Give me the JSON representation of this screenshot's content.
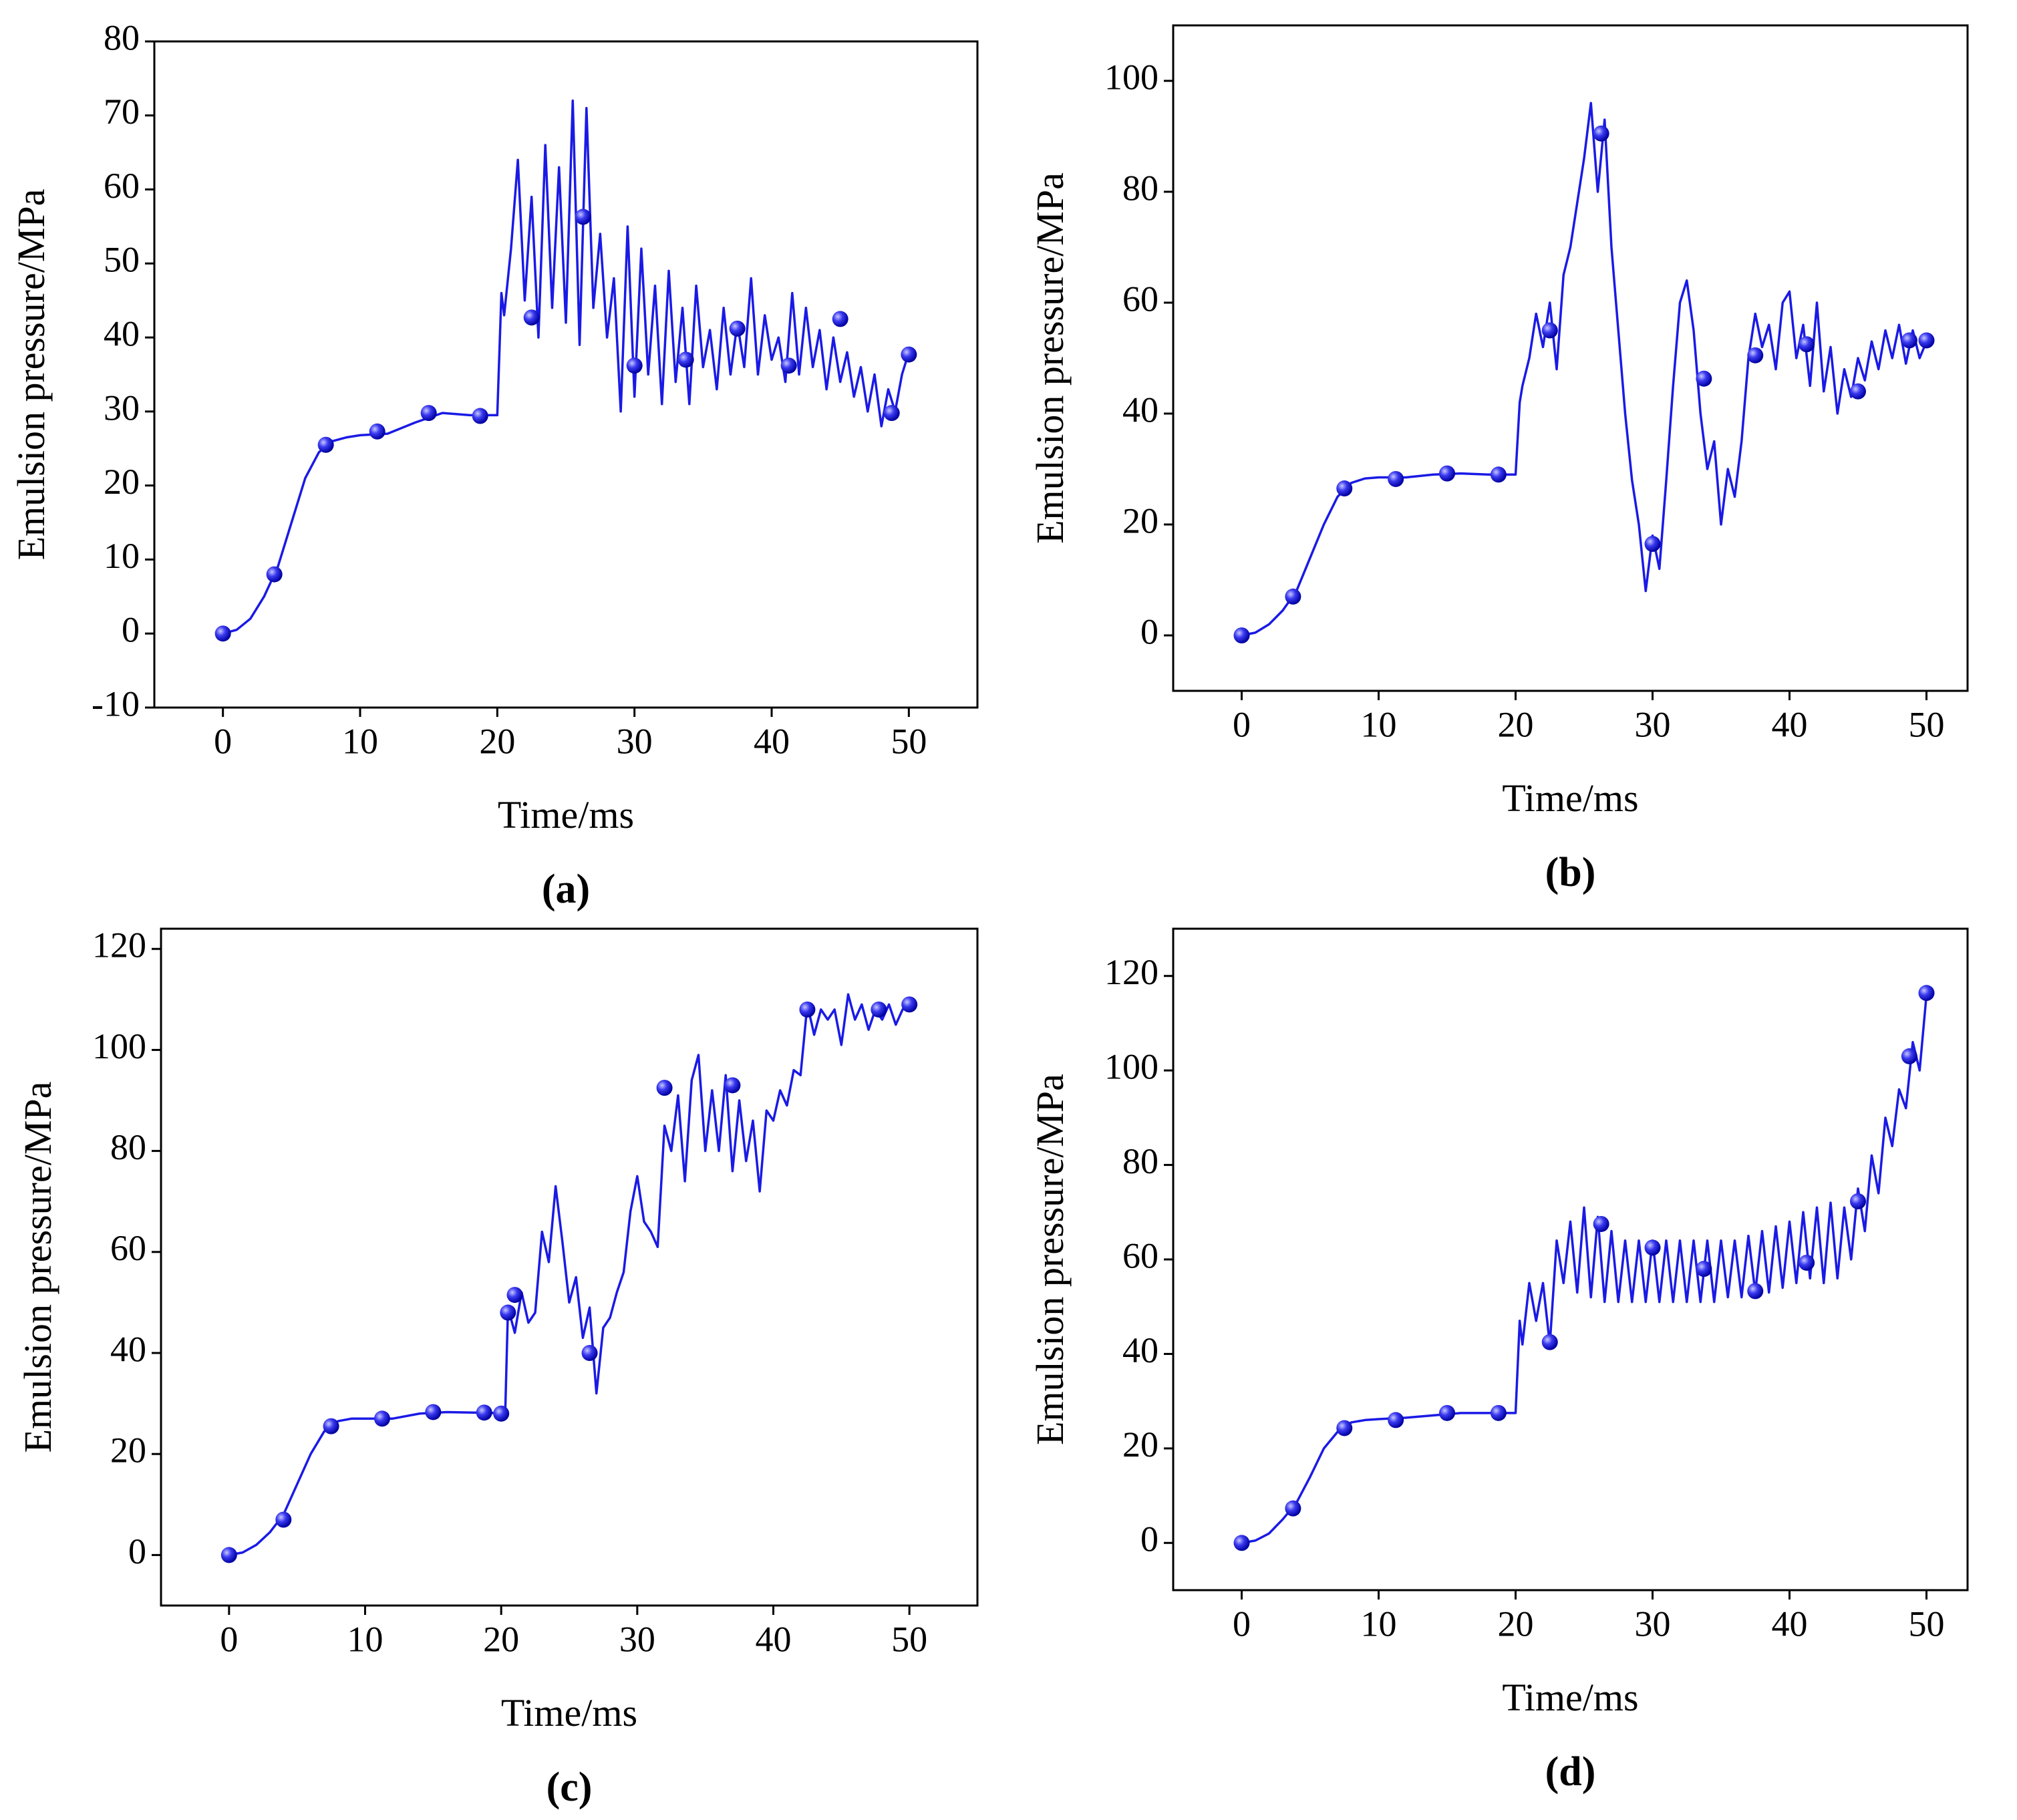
{
  "chart_data": [
    {
      "type": "line",
      "label": "(a)",
      "x_label": "Time/ms",
      "y_label": "Emulsion pressure/MPa",
      "color": "#1a1ae6",
      "xlim": [
        -5,
        55
      ],
      "ylim": [
        -10,
        80
      ],
      "xticks": [
        0,
        10,
        20,
        30,
        40,
        50
      ],
      "yticks": [
        -10,
        0,
        10,
        20,
        30,
        40,
        50,
        60,
        70,
        80
      ],
      "x": [
        0,
        1,
        2,
        3,
        4,
        5,
        6,
        7,
        8,
        9,
        10,
        12,
        14,
        16,
        18,
        19,
        20,
        20.3,
        20.5,
        21,
        21.5,
        22,
        22.5,
        23,
        23.5,
        24,
        24.5,
        25,
        25.5,
        26,
        26.5,
        27,
        27.5,
        28,
        28.5,
        29,
        29.5,
        30,
        30.5,
        31,
        31.5,
        32,
        32.5,
        33,
        33.5,
        34,
        34.5,
        35,
        35.5,
        36,
        36.5,
        37,
        37.5,
        38,
        38.5,
        39,
        39.5,
        40,
        40.5,
        41,
        41.5,
        42,
        42.5,
        43,
        43.5,
        44,
        44.5,
        45,
        45.5,
        46,
        46.5,
        47,
        47.5,
        48,
        48.5,
        49,
        49.5,
        50
      ],
      "values": [
        0,
        0.5,
        2,
        5,
        9,
        15,
        21,
        24.5,
        26,
        26.5,
        26.8,
        27,
        28.5,
        29.8,
        29.5,
        29.5,
        29.5,
        46,
        43,
        52,
        64,
        45,
        59,
        40,
        66,
        44,
        63,
        42,
        72,
        39,
        71,
        44,
        54,
        40,
        48,
        30,
        55,
        32,
        52,
        35,
        47,
        31,
        49,
        34,
        44,
        31,
        47,
        36,
        41,
        33,
        44,
        35,
        42,
        36,
        48,
        35,
        43,
        37,
        40,
        34,
        46,
        35,
        44,
        36,
        41,
        33,
        40,
        34,
        38,
        32,
        36,
        30,
        35,
        28,
        33,
        30,
        35,
        38
      ],
      "markers": {
        "x": [
          0,
          3.75,
          7.5,
          11.25,
          15,
          18.75,
          22.5,
          26.25,
          30,
          33.75,
          37.5,
          41.25,
          45,
          48.75,
          50
        ],
        "values": [
          0,
          8,
          25.5,
          27.3,
          29.8,
          29.4,
          42.7,
          56.3,
          36.2,
          37,
          41.2,
          36.2,
          42.5,
          29.8,
          37.7
        ]
      }
    },
    {
      "type": "line",
      "label": "(b)",
      "x_label": "Time/ms",
      "y_label": "Emulsion pressure/MPa",
      "color": "#1a1ae6",
      "xlim": [
        -5,
        53
      ],
      "ylim": [
        -10,
        110
      ],
      "xticks": [
        0,
        10,
        20,
        30,
        40,
        50
      ],
      "yticks": [
        0,
        20,
        40,
        60,
        80,
        100
      ],
      "x": [
        0,
        1,
        2,
        3,
        4,
        5,
        6,
        7,
        8,
        9,
        10,
        12,
        14,
        16,
        18,
        19,
        20,
        20.3,
        20.5,
        21,
        21.5,
        22,
        22.5,
        23,
        23.5,
        24,
        24.5,
        25,
        25.5,
        26,
        26.5,
        27,
        27.5,
        28,
        28.5,
        29,
        29.5,
        30,
        30.5,
        31,
        31.5,
        32,
        32.5,
        33,
        33.5,
        34,
        34.5,
        35,
        35.5,
        36,
        36.5,
        37,
        37.5,
        38,
        38.5,
        39,
        39.5,
        40,
        40.5,
        41,
        41.5,
        42,
        42.5,
        43,
        43.5,
        44,
        44.5,
        45,
        45.5,
        46,
        46.5,
        47,
        47.5,
        48,
        48.5,
        49,
        49.5,
        50
      ],
      "values": [
        0,
        0.5,
        2,
        4.5,
        8,
        14,
        20,
        25,
        27.5,
        28.3,
        28.5,
        28.5,
        29,
        29.2,
        29,
        29,
        29,
        42,
        45,
        50,
        58,
        52,
        60,
        48,
        65,
        70,
        78,
        86,
        96,
        80,
        93,
        70,
        55,
        40,
        28,
        20,
        8,
        18,
        12,
        28,
        45,
        60,
        64,
        55,
        40,
        30,
        35,
        20,
        30,
        25,
        35,
        50,
        58,
        52,
        56,
        48,
        60,
        62,
        50,
        56,
        45,
        60,
        44,
        52,
        40,
        48,
        43,
        50,
        46,
        53,
        48,
        55,
        50,
        56,
        49,
        55,
        50,
        53
      ],
      "markers": {
        "x": [
          0,
          3.75,
          7.5,
          11.25,
          15,
          18.75,
          22.5,
          26.25,
          30,
          33.75,
          37.5,
          41.25,
          45,
          48.75,
          50
        ],
        "values": [
          0,
          7,
          26.5,
          28.2,
          29.2,
          29,
          55,
          90.5,
          16.5,
          46.3,
          50.5,
          52.5,
          44,
          53.2,
          53.2
        ]
      }
    },
    {
      "type": "line",
      "label": "(c)",
      "x_label": "Time/ms",
      "y_label": "Emulsion pressure/MPa",
      "color": "#1a1ae6",
      "xlim": [
        -5,
        55
      ],
      "ylim": [
        -10,
        124
      ],
      "xticks": [
        0,
        10,
        20,
        30,
        40,
        50
      ],
      "yticks": [
        0,
        20,
        40,
        60,
        80,
        100,
        120
      ],
      "x": [
        0,
        1,
        2,
        3,
        4,
        5,
        6,
        7,
        8,
        9,
        10,
        12,
        14,
        16,
        18,
        19,
        20,
        20.3,
        20.5,
        21,
        21.5,
        22,
        22.5,
        23,
        23.5,
        24,
        24.5,
        25,
        25.5,
        26,
        26.5,
        27,
        27.5,
        28,
        28.5,
        29,
        29.5,
        30,
        30.5,
        31,
        31.5,
        32,
        32.5,
        33,
        33.5,
        34,
        34.5,
        35,
        35.5,
        36,
        36.5,
        37,
        37.5,
        38,
        38.5,
        39,
        39.5,
        40,
        40.5,
        41,
        41.5,
        42,
        42.5,
        43,
        43.5,
        44,
        44.5,
        45,
        45.5,
        46,
        46.5,
        47,
        47.5,
        48,
        48.5,
        49,
        49.5,
        50
      ],
      "values": [
        0,
        0.5,
        2,
        4.5,
        8,
        14,
        20,
        24.5,
        26.5,
        27,
        27,
        27,
        28,
        28.3,
        28.2,
        28.2,
        28,
        28.5,
        49,
        44,
        52,
        46,
        48,
        64,
        58,
        73,
        62,
        50,
        55,
        43,
        49,
        32,
        45,
        47,
        52,
        56,
        68,
        75,
        66,
        64,
        61,
        85,
        80,
        91,
        74,
        94,
        99,
        80,
        92,
        80,
        95,
        76,
        90,
        78,
        86,
        72,
        88,
        86,
        92,
        89,
        96,
        95,
        109,
        103,
        108,
        106,
        108,
        101,
        111,
        106,
        109,
        104,
        108,
        106,
        109,
        105,
        108,
        109
      ],
      "markers": {
        "x": [
          0,
          4,
          7.5,
          11.25,
          15,
          18.75,
          20,
          20.5,
          21,
          26.5,
          32,
          37,
          42.5,
          47.75,
          50
        ],
        "values": [
          0,
          7,
          25.5,
          27,
          28.3,
          28.2,
          28,
          48,
          51.5,
          40,
          92.5,
          93,
          108,
          108,
          109
        ]
      }
    },
    {
      "type": "line",
      "label": "(d)",
      "x_label": "Time/ms",
      "y_label": "Emulsion pressure/MPa",
      "color": "#1a1ae6",
      "xlim": [
        -5,
        53
      ],
      "ylim": [
        -10,
        130
      ],
      "xticks": [
        0,
        10,
        20,
        30,
        40,
        50
      ],
      "yticks": [
        0,
        20,
        40,
        60,
        80,
        100,
        120
      ],
      "x": [
        0,
        1,
        2,
        3,
        4,
        5,
        6,
        7,
        8,
        9,
        10,
        12,
        14,
        16,
        18,
        19,
        20,
        20.3,
        20.5,
        21,
        21.5,
        22,
        22.5,
        23,
        23.5,
        24,
        24.5,
        25,
        25.5,
        26,
        26.5,
        27,
        27.5,
        28,
        28.5,
        29,
        29.5,
        30,
        30.5,
        31,
        31.5,
        32,
        32.5,
        33,
        33.5,
        34,
        34.5,
        35,
        35.5,
        36,
        36.5,
        37,
        37.5,
        38,
        38.5,
        39,
        39.5,
        40,
        40.5,
        41,
        41.5,
        42,
        42.5,
        43,
        43.5,
        44,
        44.5,
        45,
        45.5,
        46,
        46.5,
        47,
        47.5,
        48,
        48.5,
        49,
        49.5,
        50
      ],
      "values": [
        0,
        0.5,
        2,
        5,
        8.5,
        14,
        20,
        23.5,
        25.5,
        26,
        26.2,
        26.5,
        27,
        27.5,
        27.5,
        27.5,
        27.5,
        47,
        42,
        55,
        47,
        55,
        42,
        64,
        55,
        68,
        53,
        71,
        52,
        69,
        51,
        66,
        51,
        64,
        51,
        64,
        51,
        64,
        51,
        64,
        51,
        64,
        51,
        64,
        51,
        64,
        51,
        64,
        52,
        64,
        52,
        65,
        53,
        66,
        53,
        67,
        54,
        68,
        55,
        70,
        56,
        71,
        55,
        72,
        56,
        71,
        60,
        75,
        66,
        82,
        74,
        90,
        84,
        96,
        92,
        106,
        100,
        116
      ],
      "markers": {
        "x": [
          0,
          3.75,
          7.5,
          11.25,
          15,
          18.75,
          22.5,
          26.25,
          30,
          33.75,
          37.5,
          41.25,
          45,
          48.75,
          50
        ],
        "values": [
          0,
          7.3,
          24.3,
          26,
          27.5,
          27.5,
          42.5,
          67.5,
          62.5,
          58,
          53.3,
          59.3,
          72.3,
          103,
          116.4
        ]
      }
    }
  ]
}
